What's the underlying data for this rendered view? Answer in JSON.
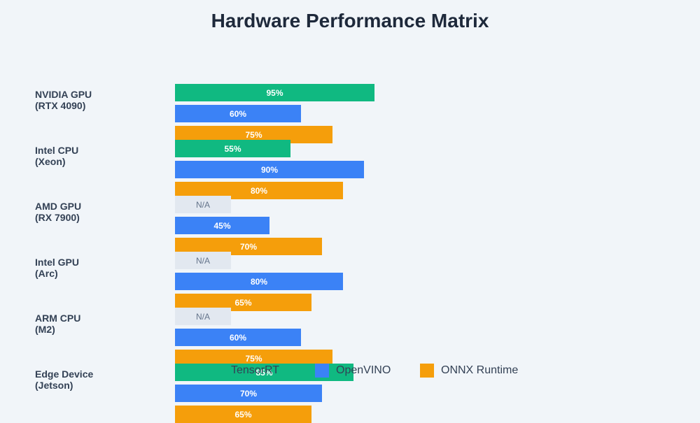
{
  "chart_data": {
    "type": "bar",
    "orientation": "horizontal",
    "title": "Hardware Performance Matrix",
    "xlabel": "",
    "ylabel": "",
    "xlim": [
      0,
      100
    ],
    "value_format": "percent",
    "missing_label": "N/A",
    "categories": [
      [
        "NVIDIA GPU",
        "(RTX 4090)"
      ],
      [
        "Intel CPU",
        "(Xeon)"
      ],
      [
        "AMD GPU",
        "(RX 7900)"
      ],
      [
        "Intel GPU",
        "(Arc)"
      ],
      [
        "ARM CPU",
        "(M2)"
      ],
      [
        "Edge Device",
        "(Jetson)"
      ]
    ],
    "series": [
      {
        "name": "TensorRT",
        "color": "#10b981",
        "values": [
          95,
          55,
          null,
          null,
          null,
          85
        ]
      },
      {
        "name": "OpenVINO",
        "color": "#3b82f6",
        "values": [
          60,
          90,
          45,
          80,
          60,
          70
        ]
      },
      {
        "name": "ONNX Runtime",
        "color": "#f59e0b",
        "values": [
          75,
          80,
          70,
          65,
          75,
          65
        ]
      }
    ],
    "legend": {
      "position": "bottom"
    }
  }
}
